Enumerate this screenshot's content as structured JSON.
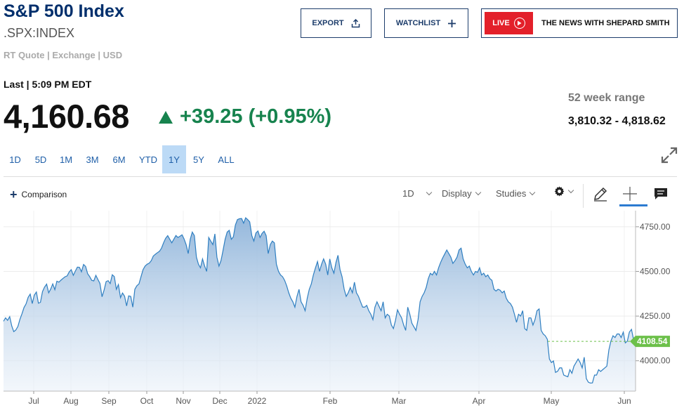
{
  "header": {
    "title": "S&P 500 Index",
    "symbol": ".SPX:INDEX",
    "meta": "RT Quote | Exchange | USD"
  },
  "actions": {
    "export_label": "EXPORT",
    "watchlist_label": "WATCHLIST",
    "live_label": "LIVE",
    "live_show": "THE NEWS WITH SHEPARD SMITH"
  },
  "quote": {
    "last_label": "Last | 5:09 PM EDT",
    "price": "4,160.68",
    "change": "+39.25 (+0.95%)",
    "range_label": "52 week range",
    "range_value": "3,810.32 - 4,818.62"
  },
  "colors": {
    "brand": "#002f6c",
    "positive": "#17834e",
    "live": "#e3202a",
    "line": "#2f7fc1",
    "price_tag": "#6cc04a"
  },
  "periods": [
    {
      "label": "1D",
      "active": false
    },
    {
      "label": "5D",
      "active": false
    },
    {
      "label": "1M",
      "active": false
    },
    {
      "label": "3M",
      "active": false
    },
    {
      "label": "6M",
      "active": false
    },
    {
      "label": "YTD",
      "active": false
    },
    {
      "label": "1Y",
      "active": true
    },
    {
      "label": "5Y",
      "active": false
    },
    {
      "label": "ALL",
      "active": false
    }
  ],
  "toolbar": {
    "comparison_label": "Comparison",
    "interval_label": "1D",
    "display_label": "Display",
    "studies_label": "Studies",
    "icons": [
      "gear-icon",
      "pencil-icon",
      "crosshair-icon",
      "comment-icon"
    ]
  },
  "chart_data": {
    "type": "area",
    "x_tick_labels": [
      "Jul",
      "Aug",
      "Sep",
      "Oct",
      "Nov",
      "Dec",
      "2022",
      "Feb",
      "Mar",
      "Apr",
      "May",
      "Jun"
    ],
    "y_tick_labels": [
      "4750.00",
      "4500.00",
      "4250.00",
      "4000.00"
    ],
    "ylim": [
      3830,
      4840
    ],
    "grid": true,
    "current_value_label": "4108.54",
    "current_value": 4108.54,
    "values": [
      4221,
      4240,
      4226,
      4247,
      4195,
      4163,
      4172,
      4192,
      4232,
      4263,
      4298,
      4318,
      4355,
      4373,
      4320,
      4367,
      4385,
      4322,
      4327,
      4387,
      4412,
      4429,
      4380,
      4401,
      4430,
      4398,
      4445,
      4440,
      4451,
      4461,
      4470,
      4475,
      4497,
      4510,
      4478,
      4502,
      4524,
      4523,
      4498,
      4539,
      4528,
      4487,
      4471,
      4450,
      4447,
      4478,
      4455,
      4433,
      4358,
      4395,
      4443,
      4448,
      4432,
      4481,
      4471,
      4400,
      4426,
      4353,
      4379,
      4361,
      4307,
      4363,
      4360,
      4300,
      4400,
      4420,
      4430,
      4470,
      4510,
      4530,
      4540,
      4546,
      4560,
      4586,
      4596,
      4605,
      4613,
      4630,
      4660,
      4685,
      4700,
      4680,
      4660,
      4680,
      4701,
      4690,
      4697,
      4705,
      4682,
      4649,
      4600,
      4680,
      4720,
      4700,
      4580,
      4540,
      4520,
      4570,
      4530,
      4500,
      4690,
      4670,
      4650,
      4710,
      4580,
      4530,
      4560,
      4620,
      4680,
      4720,
      4730,
      4680,
      4693,
      4760,
      4790,
      4795,
      4796,
      4770,
      4800,
      4790,
      4777,
      4700,
      4670,
      4715,
      4726,
      4690,
      4713,
      4725,
      4700,
      4600,
      4650,
      4670,
      4660,
      4540,
      4500,
      4480,
      4470,
      4450,
      4420,
      4380,
      4350,
      4330,
      4300,
      4360,
      4400,
      4330,
      4310,
      4280,
      4350,
      4400,
      4430,
      4480,
      4520,
      4555,
      4500,
      4540,
      4570,
      4540,
      4480,
      4570,
      4520,
      4490,
      4550,
      4590,
      4510,
      4470,
      4400,
      4360,
      4380,
      4410,
      4380,
      4440,
      4380,
      4360,
      4330,
      4300,
      4300,
      4310,
      4280,
      4260,
      4230,
      4300,
      4330,
      4305,
      4280,
      4330,
      4240,
      4260,
      4250,
      4200,
      4180,
      4225,
      4285,
      4260,
      4240,
      4200,
      4170,
      4300,
      4260,
      4210,
      4190,
      4170,
      4230,
      4330,
      4360,
      4380,
      4410,
      4460,
      4490,
      4480,
      4500,
      4480,
      4520,
      4550,
      4575,
      4597,
      4620,
      4600,
      4580,
      4545,
      4560,
      4580,
      4620,
      4630,
      4570,
      4540,
      4520,
      4530,
      4500,
      4480,
      4500,
      4495,
      4520,
      4480,
      4490,
      4470,
      4480,
      4460,
      4450,
      4400,
      4390,
      4400,
      4395,
      4380,
      4390,
      4350,
      4330,
      4320,
      4300,
      4260,
      4215,
      4260,
      4250,
      4280,
      4180,
      4170,
      4240,
      4240,
      4200,
      4230,
      4280,
      4290,
      4170,
      4150,
      4140,
      4120,
      4010,
      3990,
      3999,
      3935,
      3941,
      3960,
      3960,
      3920,
      3915,
      3910,
      3950,
      3930,
      3970,
      3990,
      4010,
      3990,
      3960,
      4020,
      3900,
      3880,
      3875,
      3876,
      3920,
      3920,
      3950,
      3940,
      3950,
      3960,
      3970,
      4060,
      4110,
      4140,
      4130,
      4150,
      4150,
      4130,
      4160,
      4100,
      4110,
      4160,
      4176,
      4120,
      4108.54
    ]
  }
}
